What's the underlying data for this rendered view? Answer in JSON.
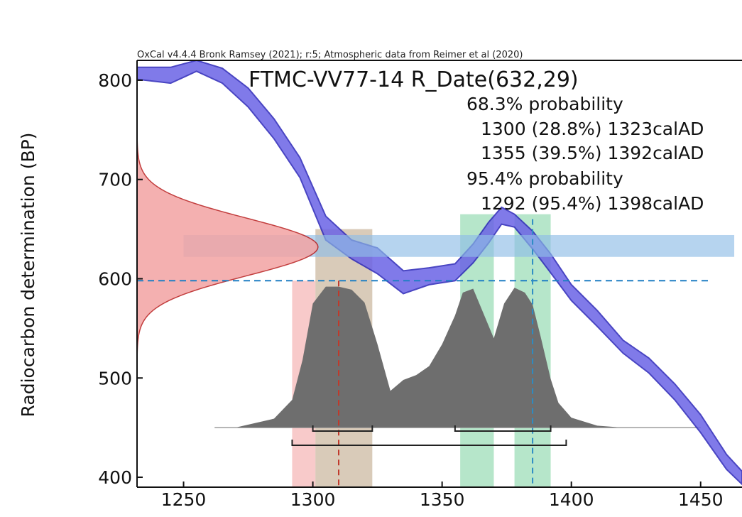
{
  "chart_data": {
    "type": "area",
    "credit": "OxCal v4.4.4 Bronk Ramsey (2021); r:5; Atmospheric data from Reimer et al (2020)",
    "title": "FTMC-VV77-14 R_Date(632,29)",
    "ylabel": "Radiocarbon determination (BP)",
    "xlabel": "",
    "xlim": [
      1232,
      1466
    ],
    "ylim": [
      390,
      820
    ],
    "xticks": [
      1250,
      1300,
      1350,
      1400,
      1450
    ],
    "yticks": [
      400,
      500,
      600,
      700,
      800
    ],
    "grid": false,
    "probability_ranges": [
      {
        "label": "68.3% probability",
        "ranges": [
          "1300 (28.8%) 1323calAD",
          "1355 (39.5%) 1392calAD"
        ]
      },
      {
        "label": "95.4% probability",
        "ranges": [
          "1292 (95.4%) 1398calAD"
        ]
      }
    ],
    "measurement": {
      "mean": 632,
      "sigma": 29,
      "band": [
        622,
        644
      ],
      "baseline_x": 1232,
      "peak_x": 1302
    },
    "dashed_level": {
      "y": 598,
      "x": [
        1232,
        1476
      ]
    },
    "calibration_curve": {
      "color": "#6b63e6",
      "edge_color": "#2a25b8",
      "x": [
        1232,
        1245,
        1255,
        1265,
        1275,
        1285,
        1295,
        1305,
        1315,
        1325,
        1335,
        1345,
        1355,
        1362,
        1368,
        1373,
        1378,
        1385,
        1392,
        1400,
        1410,
        1420,
        1430,
        1440,
        1450,
        1460,
        1466
      ],
      "high": [
        813,
        813,
        820,
        812,
        792,
        761,
        722,
        663,
        639,
        631,
        608,
        611,
        615,
        635,
        657,
        672,
        665,
        648,
        625,
        594,
        568,
        538,
        520,
        494,
        463,
        423,
        406
      ],
      "low": [
        801,
        797,
        809,
        797,
        773,
        741,
        702,
        639,
        620,
        605,
        585,
        594,
        598,
        616,
        636,
        655,
        652,
        630,
        606,
        578,
        552,
        525,
        505,
        478,
        445,
        408,
        393
      ]
    },
    "posterior": {
      "color": "#6e6e6e",
      "baseline": 450,
      "x": [
        1270,
        1285,
        1292,
        1296,
        1300,
        1305,
        1310,
        1315,
        1320,
        1325,
        1330,
        1335,
        1340,
        1345,
        1350,
        1355,
        1358,
        1362,
        1366,
        1370,
        1374,
        1378,
        1382,
        1385,
        1388,
        1392,
        1395,
        1400,
        1410,
        1420,
        1450
      ],
      "y": [
        450,
        459,
        478,
        518,
        575,
        592,
        592,
        589,
        576,
        534,
        487,
        498,
        503,
        512,
        534,
        563,
        586,
        590,
        565,
        540,
        575,
        591,
        586,
        574,
        543,
        499,
        475,
        460,
        452,
        450,
        450
      ]
    },
    "highlight_bands": [
      {
        "x": [
          1292,
          1301
        ],
        "color": "#f4a6a6"
      },
      {
        "x": [
          1301,
          1323
        ],
        "color": "#bfa88a"
      },
      {
        "x": [
          1357,
          1370
        ],
        "color": "#86d6a6"
      },
      {
        "x": [
          1378,
          1392
        ],
        "color": "#86d6a6"
      }
    ],
    "band_tops": {
      "green": 650,
      "tall_green": 665
    },
    "markers": [
      {
        "x": 1310,
        "color": "#c0392b"
      },
      {
        "x": 1385,
        "color": "#2b8cc4"
      }
    ],
    "range_brackets": [
      {
        "from": 1300,
        "to": 1323,
        "level": 1
      },
      {
        "from": 1355,
        "to": 1392,
        "level": 1
      },
      {
        "from": 1292,
        "to": 1398,
        "level": 2
      }
    ]
  }
}
